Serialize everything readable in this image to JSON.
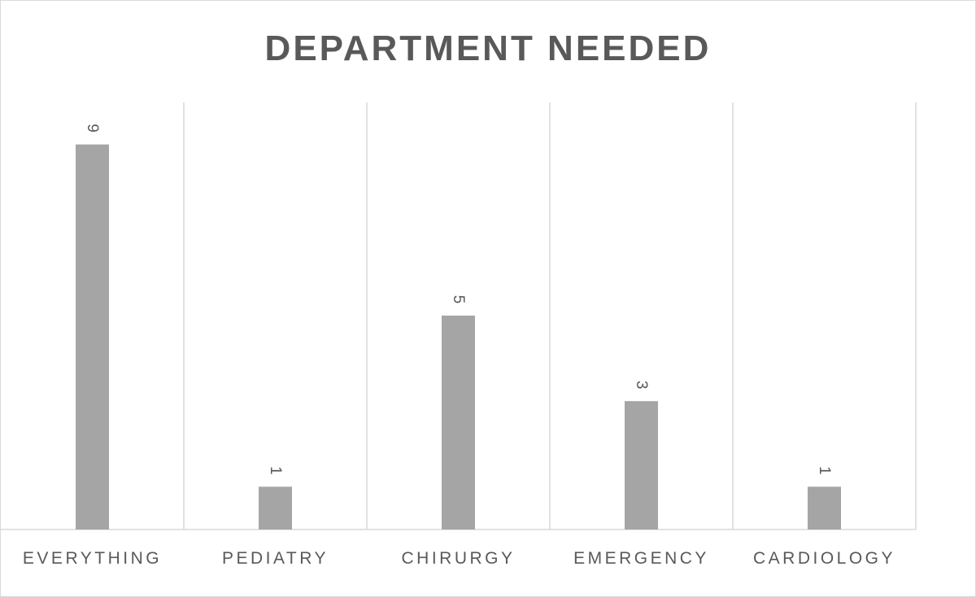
{
  "chart_data": {
    "type": "bar",
    "title": "DEPARTMENT NEEDED",
    "categories": [
      "EVERYTHING",
      "PEDIATRY",
      "CHIRURGY",
      "EMERGENCY",
      "CARDIOLOGY"
    ],
    "values": [
      9,
      1,
      5,
      3,
      1
    ],
    "ylim": [
      0,
      10
    ],
    "bar_color": "#a5a5a5",
    "gridlines": "vertical category separators",
    "data_labels": "rotated above bars",
    "legend": "none"
  }
}
